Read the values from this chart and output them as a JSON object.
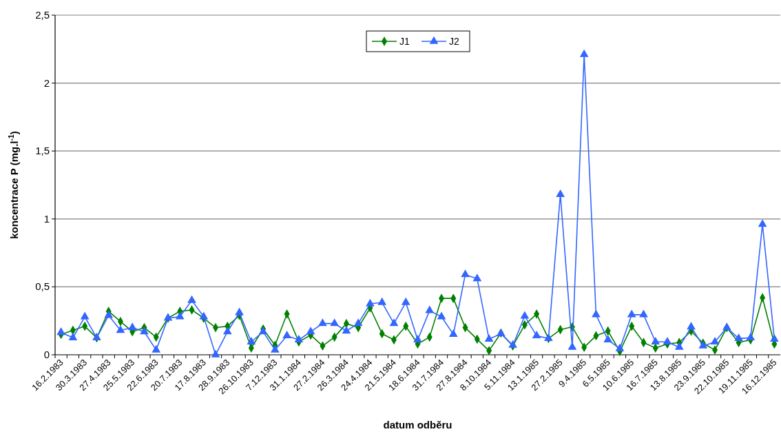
{
  "chart_data": {
    "type": "line",
    "xlabel": "datum odběru",
    "ylabel": "koncentrace P (mg.l$^{-1}$)",
    "categories": [
      "16.2.1983",
      null,
      "30.3.1983",
      null,
      "27.4.1983",
      null,
      "25.5.1983",
      null,
      "22.6.1983",
      null,
      "20.7.1983",
      null,
      "17.8.1983",
      null,
      "28.9.1983",
      null,
      "26.10.1983",
      null,
      "7.12.1983",
      null,
      "31.1.1984",
      null,
      "27.2.1984",
      null,
      "26.3.1984",
      null,
      "24.4.1984",
      null,
      "21.5.1984",
      null,
      "18.6.1984",
      null,
      "31.7.1984",
      null,
      "27.8.1984",
      null,
      "8.10.1984",
      null,
      "5.11.1984",
      null,
      "13.1.1985",
      null,
      "27.2.1985",
      null,
      "9.4.1985",
      null,
      "6.5.1985",
      null,
      "10.6.1985",
      null,
      "16.7.1985",
      null,
      "13.8.1985",
      null,
      "23.9.1985",
      null,
      "22.10.1985",
      null,
      "19.11.1985",
      null,
      "16.12.1985"
    ],
    "series": [
      {
        "name": "J1",
        "color": "#008000",
        "marker": "diamond",
        "values": [
          0.15,
          0.18,
          0.21,
          0.125,
          0.32,
          0.245,
          0.17,
          0.2,
          0.13,
          0.27,
          0.32,
          0.33,
          0.27,
          0.2,
          0.21,
          0.29,
          0.05,
          0.19,
          0.07,
          0.3,
          0.095,
          0.145,
          0.065,
          0.13,
          0.23,
          0.2,
          0.345,
          0.155,
          0.11,
          0.21,
          0.08,
          0.13,
          0.415,
          0.415,
          0.2,
          0.115,
          0.03,
          0.16,
          0.065,
          0.22,
          0.3,
          0.12,
          0.185,
          0.205,
          0.055,
          0.14,
          0.175,
          0.025,
          0.21,
          0.09,
          0.05,
          0.08,
          0.09,
          0.175,
          0.085,
          0.035,
          0.2,
          0.09,
          0.11,
          0.42,
          0.08
        ]
      },
      {
        "name": "J2",
        "color": "#3366ff",
        "marker": "triangle",
        "values": [
          0.165,
          0.125,
          0.28,
          0.125,
          0.29,
          0.18,
          0.2,
          0.17,
          0.035,
          0.27,
          0.28,
          0.4,
          0.28,
          0,
          0.17,
          0.31,
          0.095,
          0.17,
          0.035,
          0.14,
          0.11,
          0.17,
          0.23,
          0.23,
          0.175,
          0.23,
          0.375,
          0.385,
          0.23,
          0.385,
          0.11,
          0.325,
          0.28,
          0.15,
          0.59,
          0.56,
          0.115,
          0.155,
          0.07,
          0.285,
          0.14,
          0.12,
          1.18,
          0.055,
          2.21,
          0.295,
          0.11,
          0.045,
          0.295,
          0.295,
          0.095,
          0.095,
          0.055,
          0.205,
          0.065,
          0.095,
          0.2,
          0.12,
          0.125,
          0.96,
          0.115
        ]
      }
    ],
    "ylim": [
      0,
      2.5
    ],
    "yticks": [
      0,
      {
        "value": 0.5,
        "label": "0,5"
      },
      1,
      {
        "value": 1.5,
        "label": "1,5"
      },
      2,
      {
        "value": 2.5,
        "label": "2,5"
      }
    ],
    "grid": "y",
    "legend": "top"
  }
}
